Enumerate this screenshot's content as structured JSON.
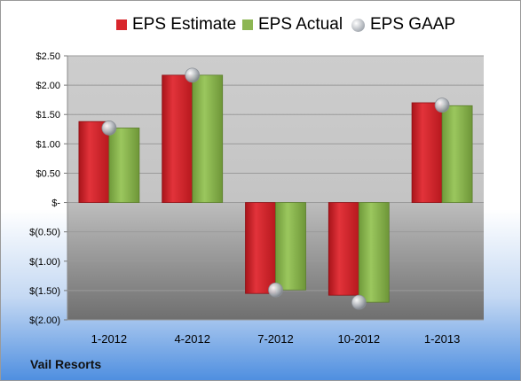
{
  "company": "Vail Resorts",
  "chart_data": {
    "type": "bar",
    "title": "",
    "xlabel": "",
    "ylabel": "",
    "categories": [
      "1-2012",
      "4-2012",
      "7-2012",
      "10-2012",
      "1-2013"
    ],
    "series": [
      {
        "name": "EPS Estimate",
        "type": "bar",
        "color": "#d8262c",
        "values": [
          1.38,
          2.17,
          -1.55,
          -1.58,
          1.7
        ]
      },
      {
        "name": "EPS Actual",
        "type": "bar",
        "color": "#8db653",
        "values": [
          1.27,
          2.17,
          -1.49,
          -1.7,
          1.65
        ]
      },
      {
        "name": "EPS GAAP",
        "type": "marker",
        "color": "#bfc3c9",
        "values": [
          1.27,
          2.17,
          -1.49,
          -1.7,
          1.66
        ]
      }
    ],
    "ylim": [
      -2.0,
      2.5
    ],
    "yticks": [
      2.5,
      2.0,
      1.5,
      1.0,
      0.5,
      0,
      -0.5,
      -1.0,
      -1.5,
      -2.0
    ],
    "ytick_labels": [
      "$2.50",
      "$2.00",
      "$1.50",
      "$1.00",
      "$0.50",
      "$-",
      "$(0.50)",
      "$(1.00)",
      "$(1.50)",
      "$(2.00)"
    ],
    "grid": true,
    "legend": "top"
  }
}
